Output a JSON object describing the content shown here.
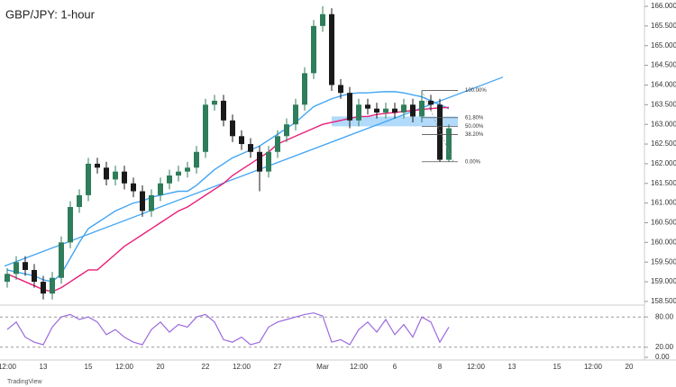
{
  "chart_data": {
    "type": "candlestick",
    "title": "GBP/JPY: 1-hour",
    "source": "TradingView",
    "categories": [
      "12:00",
      null,
      null,
      null,
      "13",
      null,
      null,
      null,
      null,
      "15",
      null,
      null,
      null,
      "12:00",
      null,
      null,
      null,
      "20",
      null,
      null,
      null,
      null,
      "22",
      null,
      null,
      null,
      "12:00",
      null,
      null,
      null,
      "27",
      null,
      null,
      null,
      null,
      "Mar",
      null,
      null,
      null,
      "12:00",
      null,
      null,
      null,
      "6",
      null,
      null,
      null,
      null,
      "8",
      null,
      null,
      null,
      "12:00",
      null,
      null,
      null,
      "13",
      null,
      null,
      null,
      null,
      "15",
      null,
      null,
      null,
      "12:00",
      null,
      null,
      null,
      "20",
      null
    ],
    "open": [
      159.0,
      159.2,
      159.5,
      159.3,
      159.0,
      158.7,
      159.1,
      160.0,
      160.9,
      161.2,
      162.0,
      161.9,
      161.6,
      161.8,
      161.5,
      161.3,
      160.8,
      161.2,
      161.5,
      161.7,
      161.8,
      161.9,
      162.3,
      163.5,
      163.6,
      163.1,
      162.7,
      162.5,
      162.3,
      161.8,
      162.3,
      162.7,
      163.0,
      163.5,
      164.3,
      165.5,
      165.8,
      164.0,
      163.8,
      163.1,
      163.5,
      163.4,
      163.3,
      163.4,
      163.3,
      163.5,
      163.2,
      163.6,
      163.5,
      162.1,
      null,
      null,
      null,
      null,
      null,
      null,
      null,
      null,
      null,
      null,
      null,
      null,
      null,
      null,
      null,
      null,
      null,
      null,
      null,
      null,
      null
    ],
    "high": [
      159.35,
      159.65,
      159.65,
      159.45,
      159.15,
      159.25,
      160.15,
      161.05,
      161.35,
      162.15,
      162.15,
      162.05,
      161.95,
      161.95,
      161.65,
      161.45,
      161.35,
      161.65,
      161.85,
      161.95,
      162.05,
      162.45,
      163.65,
      163.75,
      163.75,
      163.25,
      162.85,
      162.65,
      162.45,
      162.45,
      162.85,
      163.15,
      163.65,
      164.45,
      165.65,
      166.0,
      165.95,
      164.15,
      163.95,
      163.65,
      163.65,
      163.55,
      163.55,
      163.55,
      163.65,
      163.65,
      163.86,
      163.75,
      163.65,
      163.0,
      null,
      null,
      null,
      null,
      null,
      null,
      null,
      null,
      null,
      null,
      null,
      null,
      null,
      null,
      null,
      null,
      null,
      null,
      null,
      null,
      null
    ],
    "low": [
      158.85,
      159.05,
      159.15,
      158.85,
      158.55,
      158.55,
      158.95,
      159.85,
      160.75,
      161.05,
      161.75,
      161.45,
      161.45,
      161.35,
      161.15,
      160.65,
      160.65,
      161.05,
      161.35,
      161.55,
      161.65,
      161.75,
      162.15,
      163.35,
      162.95,
      162.55,
      162.35,
      162.15,
      161.3,
      161.65,
      162.15,
      162.55,
      162.85,
      163.35,
      164.15,
      165.35,
      163.85,
      163.65,
      162.9,
      162.95,
      163.25,
      163.15,
      163.15,
      163.15,
      163.15,
      163.05,
      163.05,
      163.35,
      162.05,
      162.05,
      null,
      null,
      null,
      null,
      null,
      null,
      null,
      null,
      null,
      null,
      null,
      null,
      null,
      null,
      null,
      null,
      null,
      null,
      null,
      null,
      null
    ],
    "close": [
      159.2,
      159.5,
      159.3,
      159.0,
      158.7,
      159.1,
      160.0,
      160.9,
      161.2,
      162.0,
      161.9,
      161.6,
      161.8,
      161.5,
      161.3,
      160.8,
      161.2,
      161.5,
      161.7,
      161.8,
      161.9,
      162.3,
      163.5,
      163.6,
      163.1,
      162.7,
      162.5,
      162.3,
      161.8,
      162.3,
      162.7,
      163.0,
      163.5,
      164.3,
      165.5,
      165.8,
      164.0,
      163.8,
      163.1,
      163.5,
      163.4,
      163.3,
      163.4,
      163.3,
      163.5,
      163.2,
      163.6,
      163.5,
      162.1,
      162.9,
      null,
      null,
      null,
      null,
      null,
      null,
      null,
      null,
      null,
      null,
      null,
      null,
      null,
      null,
      null,
      null,
      null,
      null,
      null,
      null,
      null
    ],
    "up_color": "#2e7d5b",
    "down_color": "#1a1a1a",
    "moving_averages": [
      {
        "color": "#42a5f5",
        "values": [
          159.3,
          159.25,
          159.2,
          159.15,
          159.05,
          159.0,
          159.2,
          159.6,
          160.0,
          160.35,
          160.5,
          160.65,
          160.8,
          160.9,
          161.0,
          161.05,
          161.15,
          161.2,
          161.25,
          161.3,
          161.3,
          161.45,
          161.65,
          161.85,
          162.0,
          162.15,
          162.25,
          162.35,
          162.45,
          162.6,
          162.75,
          162.9,
          163.05,
          163.25,
          163.45,
          163.55,
          163.65,
          163.72,
          163.78,
          163.8,
          163.8,
          163.82,
          163.83,
          163.83,
          163.8,
          163.75,
          163.7,
          163.6,
          163.5,
          163.4,
          null,
          null,
          null,
          null,
          null,
          null,
          null,
          null,
          null,
          null,
          null,
          null,
          null,
          null,
          null,
          null,
          null,
          null,
          null,
          null,
          null
        ]
      },
      {
        "color": "#e91e78",
        "values": [
          159.2,
          159.1,
          159.0,
          158.9,
          158.8,
          158.75,
          158.85,
          159.0,
          159.15,
          159.3,
          159.3,
          159.5,
          159.7,
          159.9,
          160.05,
          160.2,
          160.35,
          160.5,
          160.65,
          160.8,
          160.9,
          161.05,
          161.2,
          161.35,
          161.5,
          161.7,
          161.85,
          162.0,
          162.15,
          162.3,
          162.5,
          162.6,
          162.7,
          162.8,
          162.9,
          163.0,
          163.05,
          163.1,
          163.15,
          163.2,
          163.2,
          163.25,
          163.28,
          163.3,
          163.33,
          163.35,
          163.38,
          163.4,
          163.42,
          163.43,
          null,
          null,
          null,
          null,
          null,
          null,
          null,
          null,
          null,
          null,
          null,
          null,
          null,
          null,
          null,
          null,
          null,
          null,
          null,
          null,
          null
        ]
      }
    ],
    "trendline": {
      "color": "#42a5f5",
      "x": [
        0,
        55
      ],
      "y": [
        159.4,
        164.2
      ]
    },
    "zone": {
      "color": "#90caf9",
      "range": [
        162.95,
        163.2
      ],
      "x": [
        36,
        50
      ]
    },
    "fib": {
      "x": [
        46,
        50
      ],
      "levels": [
        {
          "label": "100.00%",
          "price": 163.86
        },
        {
          "label": "61.80%",
          "price": 163.17
        },
        {
          "label": "50.00%",
          "price": 162.95
        },
        {
          "label": "38.20%",
          "price": 162.74
        },
        {
          "label": "0.00%",
          "price": 162.05
        }
      ]
    },
    "ylim": [
      158.43,
      166.16
    ],
    "yticks": [
      {
        "value": 158.5,
        "label": "158.500"
      },
      {
        "value": 159,
        "label": "159.000"
      },
      {
        "value": 159.5,
        "label": "159.500"
      },
      {
        "value": 160,
        "label": "160.000"
      },
      {
        "value": 160.5,
        "label": "160.500"
      },
      {
        "value": 161,
        "label": "161.000"
      },
      {
        "value": 161.5,
        "label": "161.500"
      },
      {
        "value": 162,
        "label": "162.000"
      },
      {
        "value": 162.5,
        "label": "162.500"
      },
      {
        "value": 163,
        "label": "163.000"
      },
      {
        "value": 163.5,
        "label": "163.500"
      },
      {
        "value": 164,
        "label": "164.000"
      },
      {
        "value": 164.5,
        "label": "164.500"
      },
      {
        "value": 165,
        "label": "165.000"
      },
      {
        "value": 165.5,
        "label": "165.500"
      },
      {
        "value": 166,
        "label": "166.000"
      }
    ],
    "oscillator": {
      "color": "#9c6ade",
      "ylim": [
        0,
        100
      ],
      "yticks": [
        {
          "value": 80,
          "label": "80.00"
        },
        {
          "value": 20,
          "label": "20.00"
        },
        {
          "value": 0,
          "label": "0.00"
        }
      ],
      "dashed": [
        80,
        20
      ],
      "values": [
        55,
        70,
        40,
        30,
        25,
        60,
        80,
        85,
        75,
        80,
        70,
        45,
        55,
        40,
        30,
        25,
        55,
        70,
        50,
        65,
        60,
        80,
        85,
        70,
        35,
        30,
        40,
        25,
        30,
        60,
        70,
        75,
        80,
        85,
        88,
        82,
        30,
        35,
        25,
        55,
        70,
        50,
        75,
        45,
        65,
        40,
        80,
        70,
        30,
        60,
        null,
        null,
        null,
        null,
        null,
        null,
        null,
        null,
        null,
        null,
        null,
        null,
        null,
        null,
        null,
        null,
        null,
        null,
        null,
        null,
        null
      ]
    }
  }
}
